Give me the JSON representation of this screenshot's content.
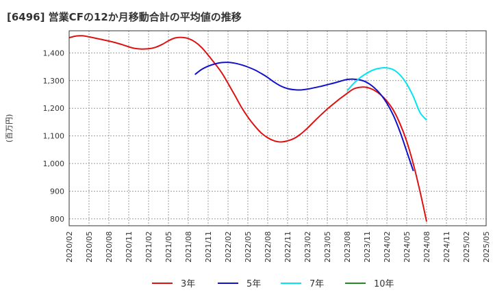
{
  "title": "[6496]  営業CFの12か月移動合計の平均値の推移",
  "chart_data": {
    "type": "line",
    "title": "[6496]  営業CFの12か月移動合計の平均値の推移",
    "ylabel": "(百万円)",
    "xlabel": "",
    "ylim": [
      775,
      1480
    ],
    "yticks": [
      800,
      900,
      1000,
      1100,
      1200,
      1300,
      1400
    ],
    "ytick_labels": [
      "800",
      "900",
      "1,000",
      "1,100",
      "1,200",
      "1,300",
      "1,400"
    ],
    "xticks": [
      "2020/02",
      "2020/05",
      "2020/08",
      "2020/11",
      "2021/02",
      "2021/05",
      "2021/08",
      "2021/11",
      "2022/02",
      "2022/05",
      "2022/08",
      "2022/11",
      "2023/02",
      "2023/05",
      "2023/08",
      "2023/11",
      "2024/02",
      "2024/05",
      "2024/08",
      "2024/11",
      "2025/02",
      "2025/05"
    ],
    "grid": true,
    "legend_position": "bottom",
    "series": [
      {
        "name": "3年",
        "color": "#dd1111",
        "points": [
          [
            "2020/02",
            1455
          ],
          [
            "2020/03",
            1461
          ],
          [
            "2020/04",
            1462
          ],
          [
            "2020/05",
            1458
          ],
          [
            "2020/06",
            1453
          ],
          [
            "2020/07",
            1448
          ],
          [
            "2020/08",
            1443
          ],
          [
            "2020/09",
            1437
          ],
          [
            "2020/10",
            1430
          ],
          [
            "2020/11",
            1422
          ],
          [
            "2020/12",
            1416
          ],
          [
            "2021/01",
            1414
          ],
          [
            "2021/02",
            1415
          ],
          [
            "2021/03",
            1420
          ],
          [
            "2021/04",
            1430
          ],
          [
            "2021/05",
            1444
          ],
          [
            "2021/06",
            1454
          ],
          [
            "2021/07",
            1456
          ],
          [
            "2021/08",
            1452
          ],
          [
            "2021/09",
            1440
          ],
          [
            "2021/10",
            1420
          ],
          [
            "2021/11",
            1392
          ],
          [
            "2021/12",
            1362
          ],
          [
            "2022/01",
            1330
          ],
          [
            "2022/02",
            1290
          ],
          [
            "2022/03",
            1248
          ],
          [
            "2022/04",
            1205
          ],
          [
            "2022/05",
            1168
          ],
          [
            "2022/06",
            1137
          ],
          [
            "2022/07",
            1111
          ],
          [
            "2022/08",
            1093
          ],
          [
            "2022/09",
            1082
          ],
          [
            "2022/10",
            1078
          ],
          [
            "2022/11",
            1082
          ],
          [
            "2022/12",
            1091
          ],
          [
            "2023/01",
            1107
          ],
          [
            "2023/02",
            1128
          ],
          [
            "2023/03",
            1152
          ],
          [
            "2023/04",
            1175
          ],
          [
            "2023/05",
            1197
          ],
          [
            "2023/06",
            1217
          ],
          [
            "2023/07",
            1236
          ],
          [
            "2023/08",
            1254
          ],
          [
            "2023/09",
            1270
          ],
          [
            "2023/10",
            1276
          ],
          [
            "2023/11",
            1275
          ],
          [
            "2023/12",
            1266
          ],
          [
            "2024/01",
            1250
          ],
          [
            "2024/02",
            1226
          ],
          [
            "2024/03",
            1192
          ],
          [
            "2024/04",
            1143
          ],
          [
            "2024/05",
            1080
          ],
          [
            "2024/06",
            998
          ],
          [
            "2024/07",
            900
          ],
          [
            "2024/08",
            790
          ]
        ]
      },
      {
        "name": "5年",
        "color": "#1111cc",
        "points": [
          [
            "2021/09",
            1322
          ],
          [
            "2021/10",
            1340
          ],
          [
            "2021/11",
            1352
          ],
          [
            "2021/12",
            1360
          ],
          [
            "2022/01",
            1365
          ],
          [
            "2022/02",
            1366
          ],
          [
            "2022/03",
            1363
          ],
          [
            "2022/04",
            1357
          ],
          [
            "2022/05",
            1349
          ],
          [
            "2022/06",
            1339
          ],
          [
            "2022/07",
            1326
          ],
          [
            "2022/08",
            1311
          ],
          [
            "2022/09",
            1294
          ],
          [
            "2022/10",
            1280
          ],
          [
            "2022/11",
            1271
          ],
          [
            "2022/12",
            1267
          ],
          [
            "2023/01",
            1266
          ],
          [
            "2023/02",
            1269
          ],
          [
            "2023/03",
            1274
          ],
          [
            "2023/04",
            1279
          ],
          [
            "2023/05",
            1285
          ],
          [
            "2023/06",
            1291
          ],
          [
            "2023/07",
            1298
          ],
          [
            "2023/08",
            1304
          ],
          [
            "2023/09",
            1305
          ],
          [
            "2023/10",
            1302
          ],
          [
            "2023/11",
            1293
          ],
          [
            "2023/12",
            1276
          ],
          [
            "2024/01",
            1252
          ],
          [
            "2024/02",
            1218
          ],
          [
            "2024/03",
            1173
          ],
          [
            "2024/04",
            1114
          ],
          [
            "2024/05",
            1044
          ],
          [
            "2024/06",
            973
          ]
        ]
      },
      {
        "name": "7年",
        "color": "#00e5ee",
        "points": [
          [
            "2023/08",
            1263
          ],
          [
            "2023/09",
            1290
          ],
          [
            "2023/10",
            1311
          ],
          [
            "2023/11",
            1327
          ],
          [
            "2023/12",
            1339
          ],
          [
            "2024/01",
            1345
          ],
          [
            "2024/02",
            1346
          ],
          [
            "2024/03",
            1339
          ],
          [
            "2024/04",
            1320
          ],
          [
            "2024/05",
            1288
          ],
          [
            "2024/06",
            1242
          ],
          [
            "2024/07",
            1185
          ],
          [
            "2024/08",
            1157
          ]
        ]
      },
      {
        "name": "10年",
        "color": "#228822",
        "points": []
      }
    ]
  }
}
